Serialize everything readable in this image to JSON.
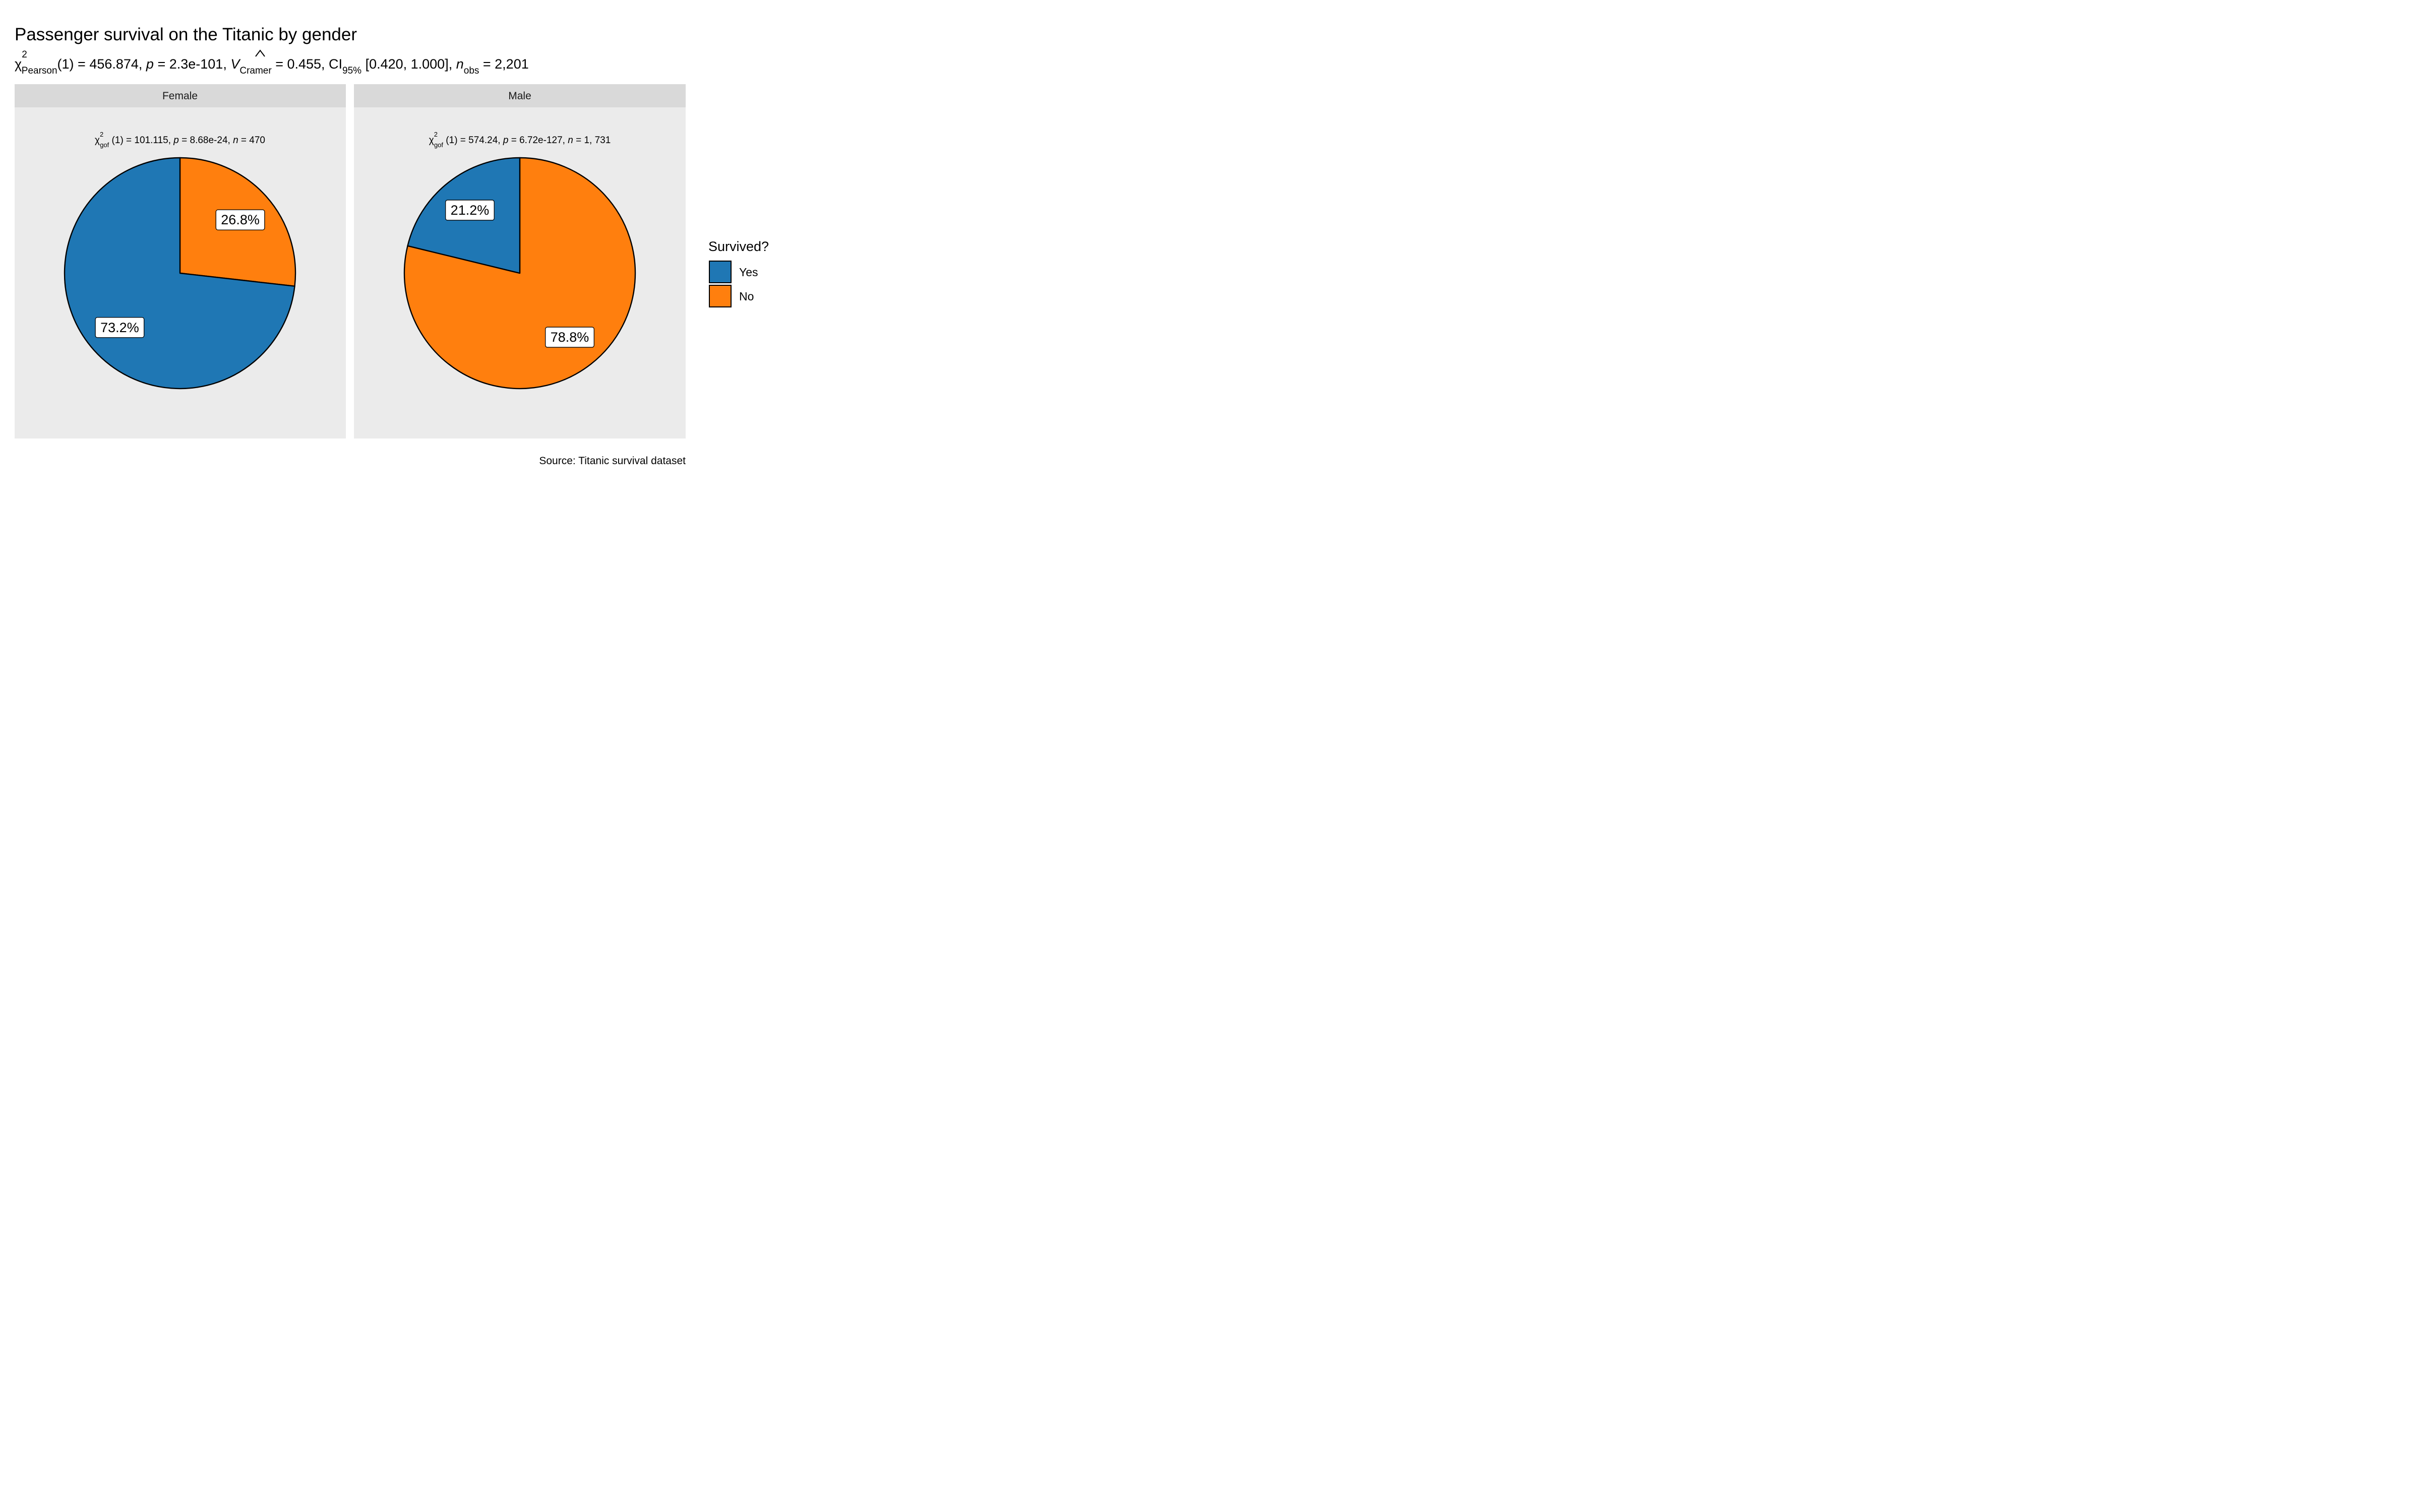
{
  "chart_data": {
    "type": "pie",
    "title": "Passenger survival on the Titanic by gender",
    "subtitle": {
      "chi_symbol": "χ",
      "chi_sup": "2",
      "chi_sub": "Pearson",
      "part1": "(1) = 456.874, ",
      "p_symbol": "p",
      "part2": " = 2.3e-101, ",
      "v_symbol": "V",
      "v_sub": "Cramer",
      "part3": " = 0.455, CI",
      "ci_sub": "95%",
      "part4": " [0.420, 1.000], ",
      "n_symbol": "n",
      "n_sub": "obs",
      "part5": " = 2,201"
    },
    "legend": {
      "title": "Survived?",
      "position": "right",
      "items": [
        {
          "label": "Yes",
          "color": "#1f77b4"
        },
        {
          "label": "No",
          "color": "#ff7f0e"
        }
      ]
    },
    "caption": "Source: Titanic survival dataset",
    "facets": [
      {
        "name": "Female",
        "stat": {
          "chi": "χ",
          "sup": "2",
          "sub": "gof",
          "df": " (1)",
          "eq1": " = 101.115,  ",
          "p": "p",
          "eq2": " = 8.68e-24,  ",
          "n": "n",
          "eq3": " = 470"
        },
        "slices": [
          {
            "category": "Yes",
            "value": 73.2,
            "label": "73.2%"
          },
          {
            "category": "No",
            "value": 26.8,
            "label": "26.8%"
          }
        ]
      },
      {
        "name": "Male",
        "stat": {
          "chi": "χ",
          "sup": "2",
          "sub": "gof",
          "df": " (1)",
          "eq1": " = 574.24,  ",
          "p": "p",
          "eq2": " = 6.72e-127,  ",
          "n": "n",
          "eq3": " = 1, 731"
        },
        "slices": [
          {
            "category": "Yes",
            "value": 21.2,
            "label": "21.2%"
          },
          {
            "category": "No",
            "value": 78.8,
            "label": "78.8%"
          }
        ]
      }
    ]
  }
}
